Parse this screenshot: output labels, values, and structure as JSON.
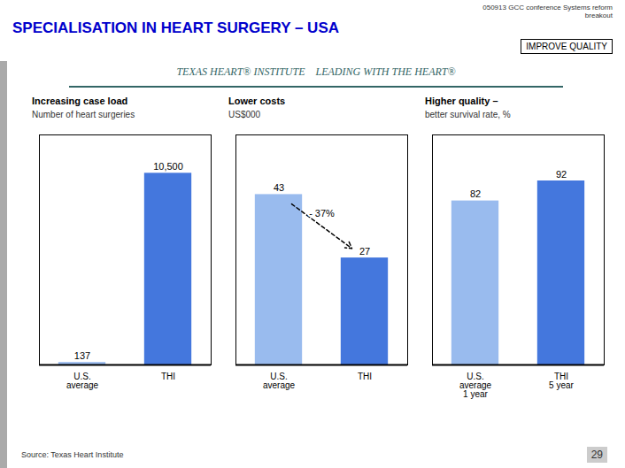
{
  "title": "SPECIALISATION IN HEART SURGERY – USA",
  "color": "#0000CC",
  "annotations": [
    "050913 GCC conference Systems reform\nbreakout",
    "IMPROVE QUALITY",
    "TEXAS HEART® INSTITUTE    LEADING WITH THE HEART®",
    "Source: Texas Heart Institute",
    "29"
  ],
  "chart_data": [
    {
      "type": "bar",
      "title": "Increasing case load",
      "subtitle": "Number of heart surgeries",
      "categories": [
        "U.S.\naverage",
        "THI"
      ],
      "values": [
        137,
        10500
      ],
      "value_labels": [
        "137",
        "10,500"
      ],
      "colors": [
        "#99BBEE",
        "#4477DD"
      ],
      "ylim": [
        0,
        12600
      ],
      "data_labels": true,
      "tick_labels": "x"
    },
    {
      "type": "bar",
      "title": "Lower costs",
      "subtitle": "US$000",
      "categories": [
        "U.S.\naverage",
        "THI"
      ],
      "values": [
        43,
        27
      ],
      "colors": [
        "#99BBEE",
        "#4477DD"
      ],
      "ylim": [
        0,
        58.05
      ],
      "data_labels": true,
      "tick_labels": "x",
      "annotations": [
        "- 37%"
      ]
    },
    {
      "type": "bar",
      "title": "Higher quality –",
      "subtitle": "better survival rate, %",
      "categories": [
        "U.S.\naverage\n1 year",
        "THI\n5 year"
      ],
      "values": [
        82,
        92
      ],
      "colors": [
        "#99BBEE",
        "#4477DD"
      ],
      "ylim": [
        0,
        115
      ],
      "data_labels": true,
      "tick_labels": "x"
    }
  ]
}
